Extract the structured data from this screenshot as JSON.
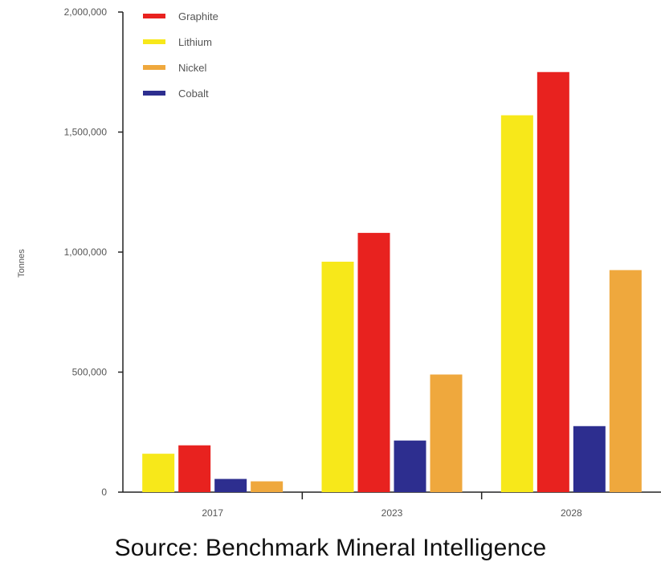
{
  "chart_data": {
    "type": "bar",
    "categories": [
      "2017",
      "2023",
      "2028"
    ],
    "series": [
      {
        "name": "Lithium",
        "color": "#f7e81a",
        "values": [
          160000,
          960000,
          1570000
        ]
      },
      {
        "name": "Graphite",
        "color": "#e8221f",
        "values": [
          195000,
          1080000,
          1750000
        ]
      },
      {
        "name": "Cobalt",
        "color": "#2d2e8f",
        "values": [
          55000,
          215000,
          275000
        ]
      },
      {
        "name": "Nickel",
        "color": "#efa83d",
        "values": [
          45000,
          490000,
          925000
        ]
      }
    ],
    "legend": [
      {
        "name": "Graphite",
        "color": "#e8221f"
      },
      {
        "name": "Lithium",
        "color": "#f7e81a"
      },
      {
        "name": "Nickel",
        "color": "#efa83d"
      },
      {
        "name": "Cobalt",
        "color": "#2d2e8f"
      }
    ],
    "legend_position": "top-left",
    "ylabel": "Tonnes",
    "xlabel": "",
    "ylim": [
      0,
      2000000
    ],
    "yticks": [
      0,
      500000,
      1000000,
      1500000,
      2000000
    ],
    "ytick_labels": [
      "0",
      "500,000",
      "1,000,000",
      "1,500,000",
      "2,000,000"
    ],
    "grid": false
  },
  "source": "Source: Benchmark Mineral Intelligence"
}
